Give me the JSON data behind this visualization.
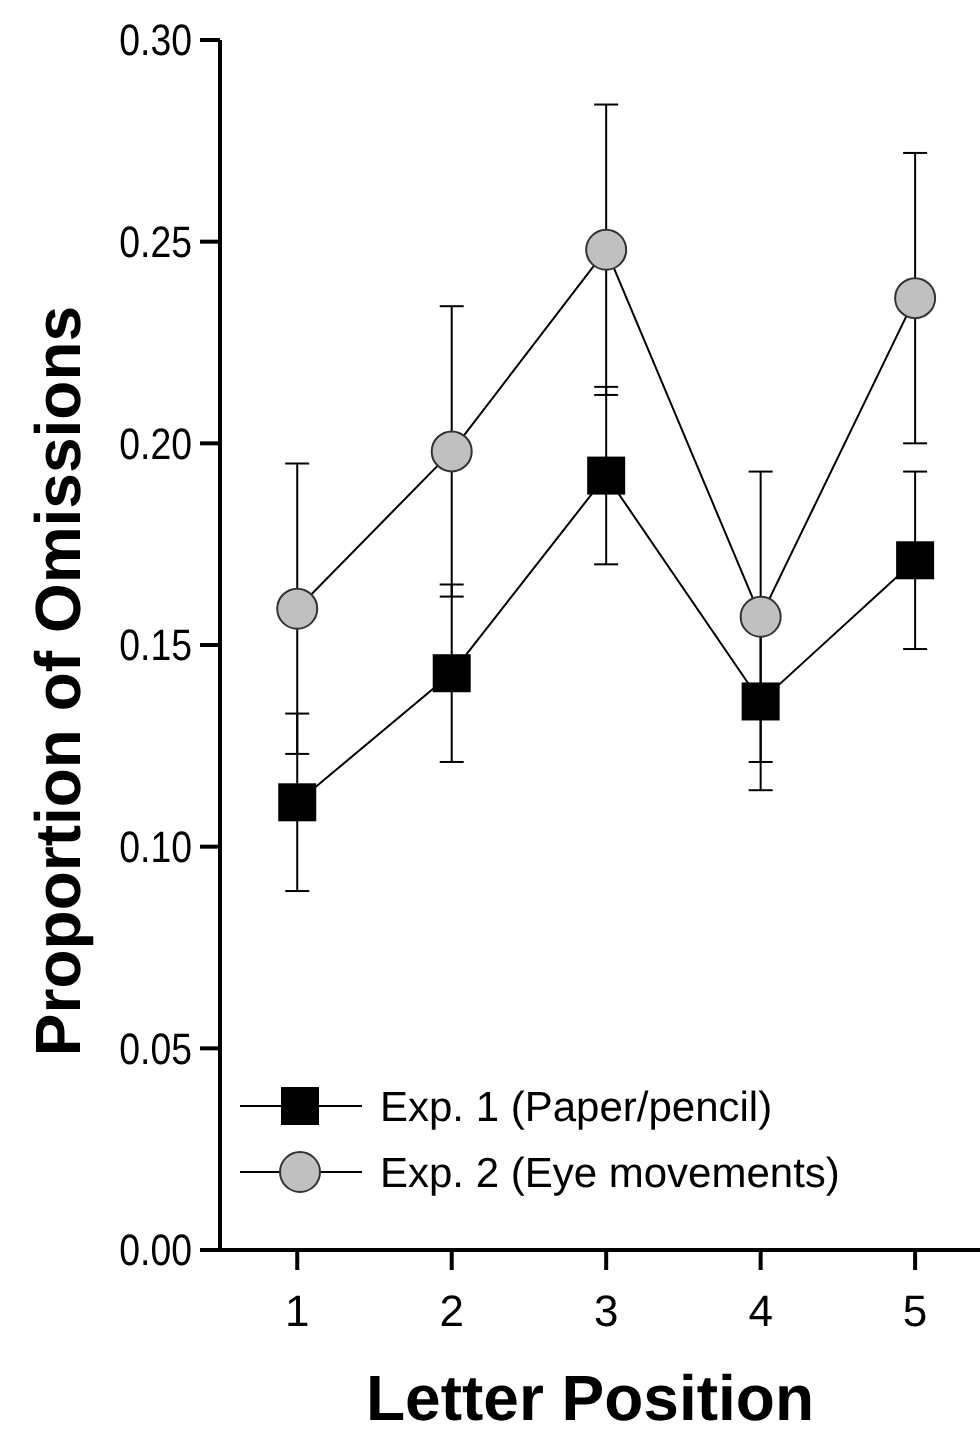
{
  "chart_data": {
    "type": "line",
    "xlabel": "Letter Position",
    "ylabel": "Proportion of Omissions",
    "x": [
      1,
      2,
      3,
      4,
      5
    ],
    "series": [
      {
        "name": "Exp. 1 (Paper/pencil)",
        "color": "#000000",
        "marker": "square",
        "values": [
          0.111,
          0.143,
          0.192,
          0.136,
          0.171
        ],
        "errors": [
          0.022,
          0.022,
          0.022,
          0.022,
          0.022
        ]
      },
      {
        "name": "Exp. 2 (Eye movements)",
        "color": "#c0c0c0",
        "marker": "circle",
        "values": [
          0.159,
          0.198,
          0.248,
          0.157,
          0.236
        ],
        "errors": [
          0.036,
          0.036,
          0.036,
          0.036,
          0.036
        ]
      }
    ],
    "xlim": [
      0.5,
      5.42
    ],
    "xticks": [
      1,
      2,
      3,
      4,
      5
    ],
    "ylim": [
      0,
      0.3
    ],
    "yticks": [
      {
        "value": 0,
        "label": "0.00"
      },
      {
        "value": 0.05,
        "label": "0.05"
      },
      {
        "value": 0.1,
        "label": "0.10"
      },
      {
        "value": 0.15,
        "label": "0.15"
      },
      {
        "value": 0.2,
        "label": "0.20"
      },
      {
        "value": 0.25,
        "label": "0.25"
      },
      {
        "value": 0.3,
        "label": "0.30"
      }
    ],
    "grid": false,
    "legend": "bottom left"
  }
}
